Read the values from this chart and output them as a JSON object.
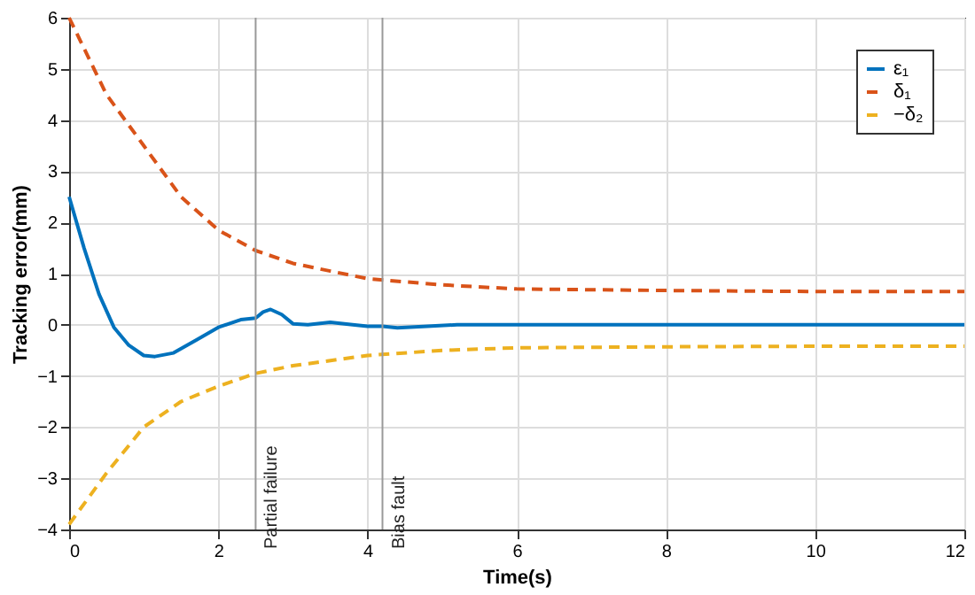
{
  "chart_data": {
    "type": "line",
    "xlabel": "Time(s)",
    "ylabel": "Tracking error(mm)",
    "xlim": [
      0,
      12
    ],
    "ylim": [
      -4,
      6
    ],
    "xticks": [
      0,
      2,
      4,
      6,
      8,
      10,
      12
    ],
    "yticks": [
      -4,
      -3,
      -2,
      -1,
      0,
      1,
      2,
      3,
      4,
      5,
      6
    ],
    "grid": true,
    "legend": "top right",
    "series": [
      {
        "name": "ε₁",
        "color": "#0072bd",
        "line_style": "solid",
        "x": [
          0,
          0.2,
          0.4,
          0.6,
          0.8,
          1.0,
          1.15,
          1.4,
          1.7,
          2.0,
          2.3,
          2.5,
          2.6,
          2.7,
          2.85,
          3.0,
          3.2,
          3.5,
          3.8,
          4.0,
          4.2,
          4.4,
          4.8,
          5.2,
          6,
          8,
          10,
          12
        ],
        "values": [
          2.5,
          1.5,
          0.6,
          -0.05,
          -0.4,
          -0.6,
          -0.62,
          -0.55,
          -0.3,
          -0.05,
          0.1,
          0.13,
          0.25,
          0.3,
          0.2,
          0.02,
          0.0,
          0.05,
          0.0,
          -0.03,
          -0.03,
          -0.06,
          -0.03,
          0.0,
          0.0,
          0.0,
          0.0,
          0.0
        ]
      },
      {
        "name": "δ₁",
        "color": "#d95319",
        "line_style": "dashed",
        "x": [
          0,
          0.5,
          1,
          1.5,
          2,
          2.5,
          3,
          3.5,
          4,
          5,
          6,
          8,
          10,
          12
        ],
        "values": [
          6,
          4.5,
          3.5,
          2.5,
          1.85,
          1.45,
          1.2,
          1.05,
          0.9,
          0.78,
          0.7,
          0.67,
          0.65,
          0.65
        ]
      },
      {
        "name": "−δ₂",
        "color": "#edb120",
        "line_style": "dashed",
        "x": [
          0,
          0.5,
          1,
          1.5,
          2,
          2.5,
          3,
          4,
          5,
          6,
          8,
          10,
          12
        ],
        "values": [
          -3.9,
          -2.9,
          -2.0,
          -1.5,
          -1.2,
          -0.95,
          -0.8,
          -0.6,
          -0.5,
          -0.45,
          -0.43,
          -0.42,
          -0.42
        ]
      }
    ],
    "ref_lines": [
      {
        "axis": "x",
        "value": 2.5,
        "label": "Partial failure",
        "color": "#999999"
      },
      {
        "axis": "x",
        "value": 4.2,
        "label": "Bias fault",
        "color": "#999999"
      }
    ]
  }
}
